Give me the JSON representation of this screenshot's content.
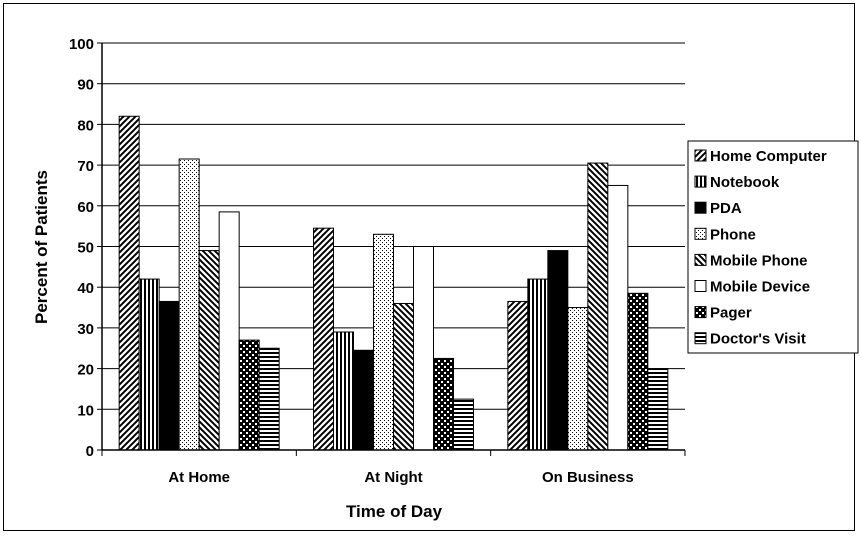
{
  "chart_data": {
    "type": "bar",
    "title": "",
    "xlabel": "Time of Day",
    "ylabel": "Percent of Patients",
    "ylim": [
      0,
      100
    ],
    "yticks": [
      0,
      10,
      20,
      30,
      40,
      50,
      60,
      70,
      80,
      90,
      100
    ],
    "grid": true,
    "legend_position": "right",
    "categories": [
      "At Home",
      "At Night",
      "On Business"
    ],
    "series": [
      {
        "name": "Home Computer",
        "pattern": "diag-right-icon",
        "values": [
          82,
          54.5,
          36.5
        ]
      },
      {
        "name": "Notebook",
        "pattern": "vertical-lines-icon",
        "values": [
          42,
          29,
          42
        ]
      },
      {
        "name": "PDA",
        "pattern": "solid-black-icon",
        "values": [
          36.5,
          24.5,
          49
        ]
      },
      {
        "name": "Phone",
        "pattern": "fine-dots-icon",
        "values": [
          71.5,
          53,
          35
        ]
      },
      {
        "name": "Mobile Phone",
        "pattern": "diag-left-icon",
        "values": [
          49,
          36,
          70.5
        ]
      },
      {
        "name": "Mobile Device",
        "pattern": "white-icon",
        "values": [
          58.5,
          50,
          65
        ]
      },
      {
        "name": "Pager",
        "pattern": "big-dots-icon",
        "values": [
          27,
          22.5,
          38.5
        ]
      },
      {
        "name": "Doctor's Visit",
        "pattern": "horizontal-lines-icon",
        "values": [
          25,
          12.5,
          20
        ]
      }
    ]
  }
}
